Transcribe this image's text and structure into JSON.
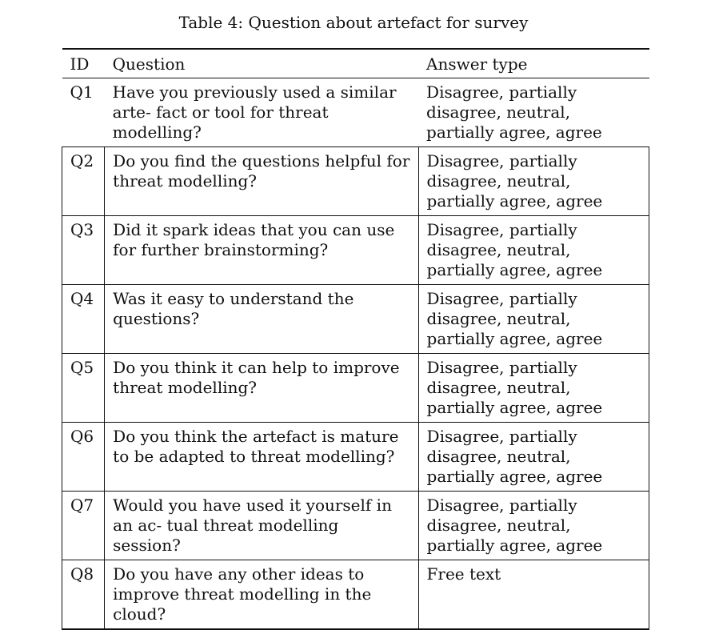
{
  "caption": "Table 4: Question about artefact for survey",
  "table": {
    "headers": [
      "ID",
      "Question",
      "Answer type"
    ],
    "rows": [
      {
        "id": "Q1",
        "question": "Have you previously used a similar arte- fact or tool for threat modelling?",
        "answer": "Disagree, partially disagree, neutral, partially agree, agree"
      },
      {
        "id": "Q2",
        "question": "Do you find the questions helpful for threat modelling?",
        "answer": "Disagree, partially disagree, neutral, partially agree, agree"
      },
      {
        "id": "Q3",
        "question": "Did it spark ideas that you can use for further brainstorming?",
        "answer": "Disagree, partially disagree, neutral, partially agree, agree"
      },
      {
        "id": "Q4",
        "question": "Was it easy to understand the questions?",
        "answer": "Disagree, partially disagree, neutral, partially agree, agree"
      },
      {
        "id": "Q5",
        "question": "Do you think it can help to improve threat modelling?",
        "answer": "Disagree, partially disagree, neutral, partially agree, agree"
      },
      {
        "id": "Q6",
        "question": "Do you think the artefact is mature to be adapted to threat modelling?",
        "answer": "Disagree, partially disagree, neutral, partially agree, agree"
      },
      {
        "id": "Q7",
        "question": "Would you have used it yourself in an ac- tual threat modelling session?",
        "answer": "Disagree, partially disagree, neutral, partially agree, agree"
      },
      {
        "id": "Q8",
        "question": "Do you have any other ideas to improve threat modelling in the cloud?",
        "answer": "Free text"
      }
    ]
  }
}
